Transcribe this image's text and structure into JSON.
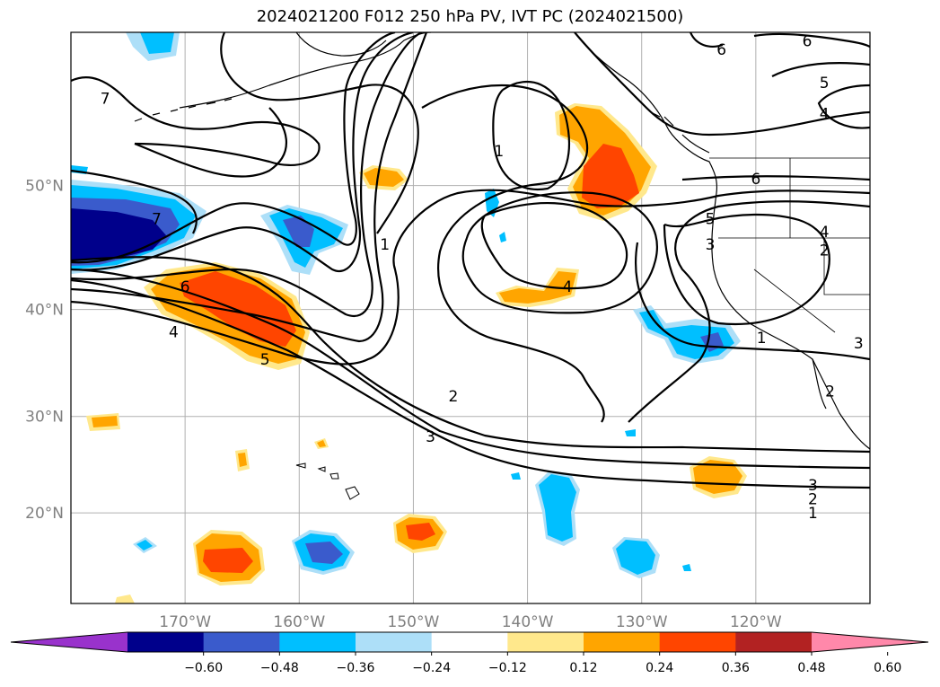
{
  "title": "2024021200 F012 250 hPa PV, IVT PC (2024021500)",
  "map": {
    "lon_range": [
      -180,
      -110
    ],
    "lat_range": [
      10,
      60
    ],
    "lat_ticks": [
      {
        "value": 50,
        "label": "50°N"
      },
      {
        "value": 40,
        "label": "40°N"
      },
      {
        "value": 30,
        "label": "30°N"
      },
      {
        "value": 20,
        "label": "20°N"
      }
    ],
    "lon_ticks": [
      {
        "value": -170,
        "label": "170°W"
      },
      {
        "value": -160,
        "label": "160°W"
      },
      {
        "value": -150,
        "label": "150°W"
      },
      {
        "value": -140,
        "label": "140°W"
      },
      {
        "value": -130,
        "label": "130°W"
      },
      {
        "value": -120,
        "label": "120°W"
      }
    ],
    "grid": true,
    "contour_labels": [
      {
        "text": "7",
        "lon": -177.0,
        "lat": 56.0
      },
      {
        "text": "7",
        "lon": -172.5,
        "lat": 47.5
      },
      {
        "text": "6",
        "lon": -170.0,
        "lat": 42.0
      },
      {
        "text": "4",
        "lon": -171.0,
        "lat": 38.0
      },
      {
        "text": "5",
        "lon": -163.0,
        "lat": 35.5
      },
      {
        "text": "1",
        "lon": -152.5,
        "lat": 45.5
      },
      {
        "text": "1",
        "lon": -142.5,
        "lat": 52.5
      },
      {
        "text": "4",
        "lon": -136.5,
        "lat": 42.0
      },
      {
        "text": "2",
        "lon": -146.5,
        "lat": 32.0
      },
      {
        "text": "3",
        "lon": -148.5,
        "lat": 28.0
      },
      {
        "text": "6",
        "lon": -123.0,
        "lat": 59.0
      },
      {
        "text": "6",
        "lon": -115.5,
        "lat": 59.5
      },
      {
        "text": "5",
        "lon": -114.0,
        "lat": 57.0
      },
      {
        "text": "4",
        "lon": -114.0,
        "lat": 55.0
      },
      {
        "text": "6",
        "lon": -120.0,
        "lat": 50.5
      },
      {
        "text": "5",
        "lon": -124.0,
        "lat": 47.5
      },
      {
        "text": "3",
        "lon": -124.0,
        "lat": 45.5
      },
      {
        "text": "4",
        "lon": -114.0,
        "lat": 46.5
      },
      {
        "text": "2",
        "lon": -114.0,
        "lat": 45.0
      },
      {
        "text": "1",
        "lon": -119.5,
        "lat": 37.5
      },
      {
        "text": "3",
        "lon": -111.0,
        "lat": 37.0
      },
      {
        "text": "2",
        "lon": -113.5,
        "lat": 32.5
      },
      {
        "text": "3",
        "lon": -115.0,
        "lat": 23.0
      },
      {
        "text": "2",
        "lon": -115.0,
        "lat": 21.5
      },
      {
        "text": "1",
        "lon": -115.0,
        "lat": 20.0
      }
    ]
  },
  "colorbar": {
    "labels": [
      "−0.60",
      "−0.48",
      "−0.36",
      "−0.24",
      "−0.12",
      "0.12",
      "0.24",
      "0.36",
      "0.48",
      "0.60"
    ],
    "colors": [
      "#9932CC",
      "#00008B",
      "#3A5BCC",
      "#00BFFF",
      "#ADDFF8",
      "#FFFFFF",
      "#FFE88C",
      "#FFA500",
      "#FF4500",
      "#B22222",
      "#FF88AA"
    ]
  }
}
